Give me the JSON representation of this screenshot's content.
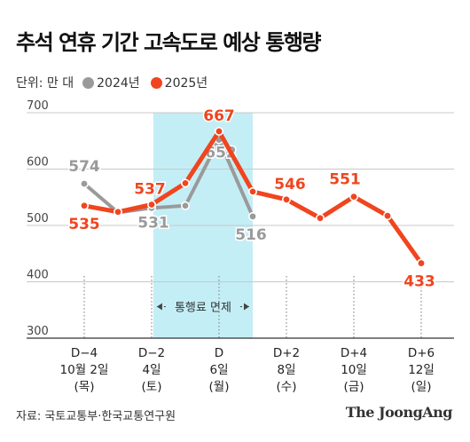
{
  "title": "추석 연휴 기간 고속도로 예상 통행량",
  "unit_label": "단위: 만 대",
  "source": "자료: 국토교통부·한국교통연구원",
  "logo": "The JoongAng",
  "highlight_label": "통행료 면제",
  "colors": {
    "s2024": "#9a9a9a",
    "s2025": "#f0451e",
    "highlight": "#c4eef6",
    "grid": "#c8c8c8"
  },
  "chart_data": {
    "type": "line",
    "ylim": [
      300,
      700
    ],
    "yticks": [
      300,
      400,
      500,
      600,
      700
    ],
    "x": [
      -4,
      -3,
      -2,
      -1,
      0,
      1,
      2,
      3,
      4,
      5,
      6
    ],
    "x_ticks": [
      {
        "x": -4,
        "lines": [
          "D−4",
          "10월 2일",
          "(목)"
        ]
      },
      {
        "x": -2,
        "lines": [
          "D−2",
          "4일",
          "(토)"
        ]
      },
      {
        "x": 0,
        "lines": [
          "D",
          "6일",
          "(월)"
        ]
      },
      {
        "x": 2,
        "lines": [
          "D+2",
          "8일",
          "(수)"
        ]
      },
      {
        "x": 4,
        "lines": [
          "D+4",
          "10일",
          "(금)"
        ]
      },
      {
        "x": 6,
        "lines": [
          "D+6",
          "12일",
          "(일)"
        ]
      }
    ],
    "highlight_range": [
      -1.95,
      1.0
    ],
    "series": [
      {
        "name": "2024년",
        "key": "s2024",
        "x": [
          -4,
          -3,
          -2,
          -1,
          0,
          1
        ],
        "values": [
          574,
          523,
          531,
          535,
          652,
          516
        ],
        "labels": [
          {
            "x": -4,
            "text": "574"
          },
          {
            "x": -2,
            "text": "531"
          },
          {
            "x": 0,
            "text": "652"
          },
          {
            "x": 1,
            "text": "516"
          }
        ]
      },
      {
        "name": "2025년",
        "key": "s2025",
        "x": [
          -4,
          -3,
          -2,
          -1,
          0,
          1,
          2,
          3,
          4,
          5,
          6
        ],
        "values": [
          535,
          524,
          537,
          575,
          667,
          560,
          546,
          513,
          551,
          517,
          433
        ],
        "labels": [
          {
            "x": -4,
            "text": "535"
          },
          {
            "x": -2,
            "text": "537"
          },
          {
            "x": 0,
            "text": "667"
          },
          {
            "x": 2,
            "text": "546"
          },
          {
            "x": 4,
            "text": "551"
          },
          {
            "x": 6,
            "text": "433"
          }
        ]
      }
    ]
  }
}
